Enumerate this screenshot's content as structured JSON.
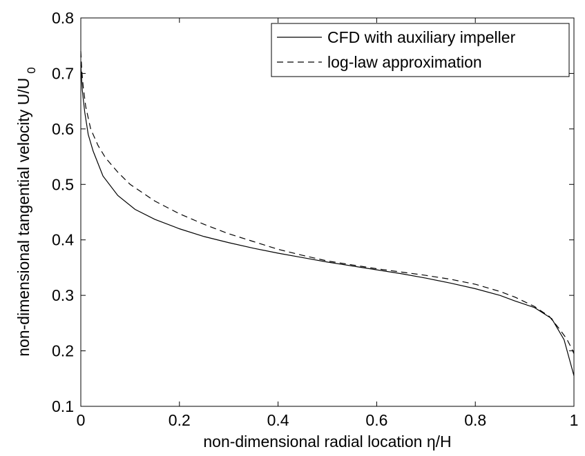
{
  "chart_data": {
    "type": "line",
    "xlabel": "non-dimensional radial location  η/H",
    "ylabel": "non-dimensional tangential velocity U/U",
    "ylabel_subscript": "0",
    "xlim": [
      0,
      1
    ],
    "ylim": [
      0.1,
      0.8
    ],
    "xticks": [
      "0",
      "0.2",
      "0.4",
      "0.6",
      "0.8",
      "1"
    ],
    "yticks": [
      "0.1",
      "0.2",
      "0.3",
      "0.4",
      "0.5",
      "0.6",
      "0.7",
      "0.8"
    ],
    "grid": false,
    "legend_position": "top-right",
    "series": [
      {
        "name": "CFD with auxiliary impeller",
        "style": "solid",
        "color": "#000000",
        "x": [
          0.0,
          0.003,
          0.008,
          0.015,
          0.025,
          0.045,
          0.075,
          0.11,
          0.15,
          0.2,
          0.25,
          0.3,
          0.35,
          0.4,
          0.45,
          0.5,
          0.55,
          0.6,
          0.65,
          0.7,
          0.75,
          0.8,
          0.85,
          0.88,
          0.92,
          0.955,
          0.98,
          1.0
        ],
        "y": [
          0.715,
          0.67,
          0.63,
          0.59,
          0.56,
          0.515,
          0.48,
          0.455,
          0.437,
          0.42,
          0.406,
          0.395,
          0.385,
          0.376,
          0.368,
          0.36,
          0.353,
          0.346,
          0.339,
          0.331,
          0.322,
          0.312,
          0.3,
          0.29,
          0.278,
          0.258,
          0.22,
          0.155
        ]
      },
      {
        "name": "log-law approximation",
        "style": "dashed",
        "color": "#000000",
        "x": [
          0.0,
          0.002,
          0.005,
          0.01,
          0.02,
          0.035,
          0.05,
          0.075,
          0.1,
          0.15,
          0.2,
          0.25,
          0.3,
          0.35,
          0.4,
          0.45,
          0.5,
          0.55,
          0.6,
          0.65,
          0.7,
          0.75,
          0.8,
          0.85,
          0.88,
          0.92,
          0.95,
          0.97,
          0.985,
          0.995,
          1.0
        ],
        "y": [
          0.74,
          0.705,
          0.675,
          0.64,
          0.6,
          0.57,
          0.548,
          0.522,
          0.5,
          0.47,
          0.447,
          0.428,
          0.411,
          0.397,
          0.383,
          0.372,
          0.362,
          0.355,
          0.348,
          0.342,
          0.336,
          0.329,
          0.32,
          0.307,
          0.297,
          0.28,
          0.262,
          0.24,
          0.222,
          0.205,
          0.195
        ]
      }
    ]
  }
}
